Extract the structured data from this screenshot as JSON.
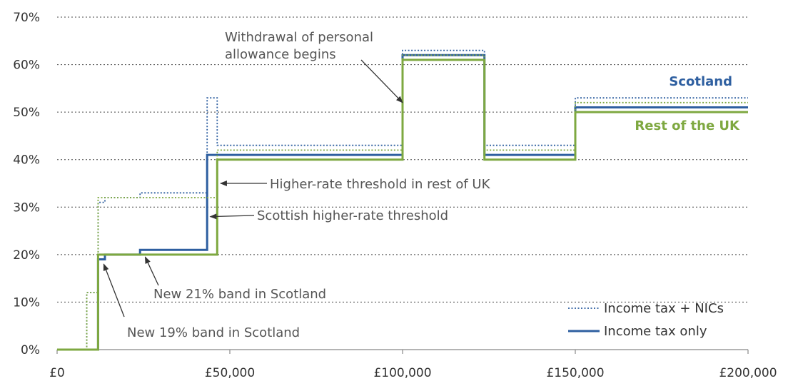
{
  "chart_data": {
    "type": "line",
    "title": "",
    "xlabel": "",
    "ylabel": "",
    "xlim": [
      0,
      200000
    ],
    "ylim": [
      0,
      70
    ],
    "x_ticks": [
      {
        "value": 0,
        "label": "£0"
      },
      {
        "value": 50000,
        "label": "£50,000"
      },
      {
        "value": 100000,
        "label": "£100,000"
      },
      {
        "value": 150000,
        "label": "£150,000"
      },
      {
        "value": 200000,
        "label": "£200,000"
      }
    ],
    "y_ticks": [
      {
        "value": 0,
        "label": "0%"
      },
      {
        "value": 10,
        "label": "10%"
      },
      {
        "value": 20,
        "label": "20%"
      },
      {
        "value": 30,
        "label": "30%"
      },
      {
        "value": 40,
        "label": "40%"
      },
      {
        "value": 50,
        "label": "50%"
      },
      {
        "value": 60,
        "label": "60%"
      },
      {
        "value": 70,
        "label": "70%"
      }
    ],
    "grid": "horizontal dotted",
    "colors": {
      "scotland": "#2e5fa0",
      "rest_of_uk": "#7ea840",
      "grid": "#444444",
      "axis": "#888888",
      "annotation": "#555555",
      "arrow": "#333333"
    },
    "series": [
      {
        "name": "",
        "group": "scotland",
        "style": "dotted",
        "points": [
          [
            0,
            0
          ],
          [
            8600,
            0
          ],
          [
            8600,
            12
          ],
          [
            11850,
            12
          ],
          [
            11850,
            31
          ],
          [
            13850,
            31
          ],
          [
            13850,
            32
          ],
          [
            24000,
            32
          ],
          [
            24000,
            33
          ],
          [
            43430,
            33
          ],
          [
            43430,
            53
          ],
          [
            46350,
            53
          ],
          [
            46350,
            43
          ],
          [
            100000,
            43
          ],
          [
            100000,
            63
          ],
          [
            123700,
            63
          ],
          [
            123700,
            43
          ],
          [
            150000,
            43
          ],
          [
            150000,
            53
          ],
          [
            200000,
            53
          ]
        ]
      },
      {
        "name": "",
        "group": "scotland",
        "style": "solid",
        "points": [
          [
            0,
            0
          ],
          [
            11850,
            0
          ],
          [
            11850,
            19
          ],
          [
            13850,
            19
          ],
          [
            13850,
            20
          ],
          [
            24000,
            20
          ],
          [
            24000,
            21
          ],
          [
            43430,
            21
          ],
          [
            43430,
            41
          ],
          [
            100000,
            41
          ],
          [
            100000,
            62
          ],
          [
            123700,
            62
          ],
          [
            123700,
            41
          ],
          [
            150000,
            41
          ],
          [
            150000,
            51
          ],
          [
            200000,
            51
          ]
        ]
      },
      {
        "name": "",
        "group": "rest_of_uk",
        "style": "dotted",
        "points": [
          [
            0,
            0
          ],
          [
            8600,
            0
          ],
          [
            8600,
            12
          ],
          [
            11850,
            12
          ],
          [
            11850,
            32
          ],
          [
            46350,
            32
          ],
          [
            46350,
            42
          ],
          [
            100000,
            42
          ],
          [
            100000,
            62
          ],
          [
            123700,
            62
          ],
          [
            123700,
            42
          ],
          [
            150000,
            42
          ],
          [
            150000,
            52
          ],
          [
            200000,
            52
          ]
        ]
      },
      {
        "name": "",
        "group": "rest_of_uk",
        "style": "solid",
        "points": [
          [
            0,
            0
          ],
          [
            11850,
            0
          ],
          [
            11850,
            20
          ],
          [
            46350,
            20
          ],
          [
            46350,
            40
          ],
          [
            100000,
            40
          ],
          [
            100000,
            61
          ],
          [
            123700,
            61
          ],
          [
            123700,
            40
          ],
          [
            150000,
            40
          ],
          [
            150000,
            50
          ],
          [
            200000,
            50
          ]
        ]
      }
    ],
    "series_labels": {
      "scotland": "Scotland",
      "rest_of_uk": "Rest of the UK"
    },
    "legend": {
      "placement": "bottom-right",
      "items": [
        {
          "label": "Income tax + NICs",
          "style": "dotted"
        },
        {
          "label": "Income tax only",
          "style": "solid"
        }
      ]
    },
    "annotations": [
      {
        "lines": [
          "Withdrawal of personal",
          "allowance begins"
        ],
        "target": [
          100000,
          52
        ]
      },
      {
        "lines": [
          "Higher-rate threshold in rest of UK"
        ],
        "target": [
          47300,
          35
        ]
      },
      {
        "lines": [
          "Scottish higher-rate threshold"
        ],
        "target": [
          44300,
          28
        ]
      },
      {
        "lines": [
          "New 21% band in Scotland"
        ],
        "target": [
          25500,
          19.5
        ]
      },
      {
        "lines": [
          "New 19% band in Scotland"
        ],
        "target": [
          13500,
          18
        ]
      }
    ]
  }
}
